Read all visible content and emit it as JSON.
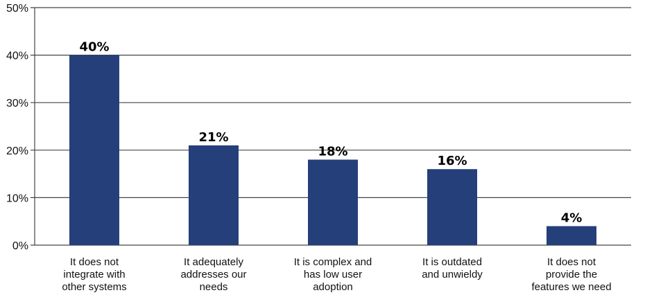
{
  "chart_data": {
    "type": "bar",
    "categories": [
      [
        "It does not",
        "integrate with",
        "other systems"
      ],
      [
        "It adequately",
        "addresses our",
        "needs"
      ],
      [
        "It is complex and",
        "has low user",
        "adoption"
      ],
      [
        "It is outdated",
        "and unwieldy"
      ],
      [
        "It does not",
        "provide the",
        "features we need"
      ]
    ],
    "values": [
      40,
      21,
      18,
      16,
      4
    ],
    "data_labels": [
      "40%",
      "21%",
      "18%",
      "16%",
      "4%"
    ],
    "y_ticks": [
      0,
      10,
      20,
      30,
      40,
      50
    ],
    "y_tick_labels": [
      "0%",
      "10%",
      "20%",
      "30%",
      "40%",
      "50%"
    ],
    "ylim": [
      0,
      50
    ],
    "grid": true,
    "legend": "none",
    "bar_color": "#253f7a",
    "grid_color": "#444444",
    "title": "",
    "xlabel": "",
    "ylabel": ""
  }
}
